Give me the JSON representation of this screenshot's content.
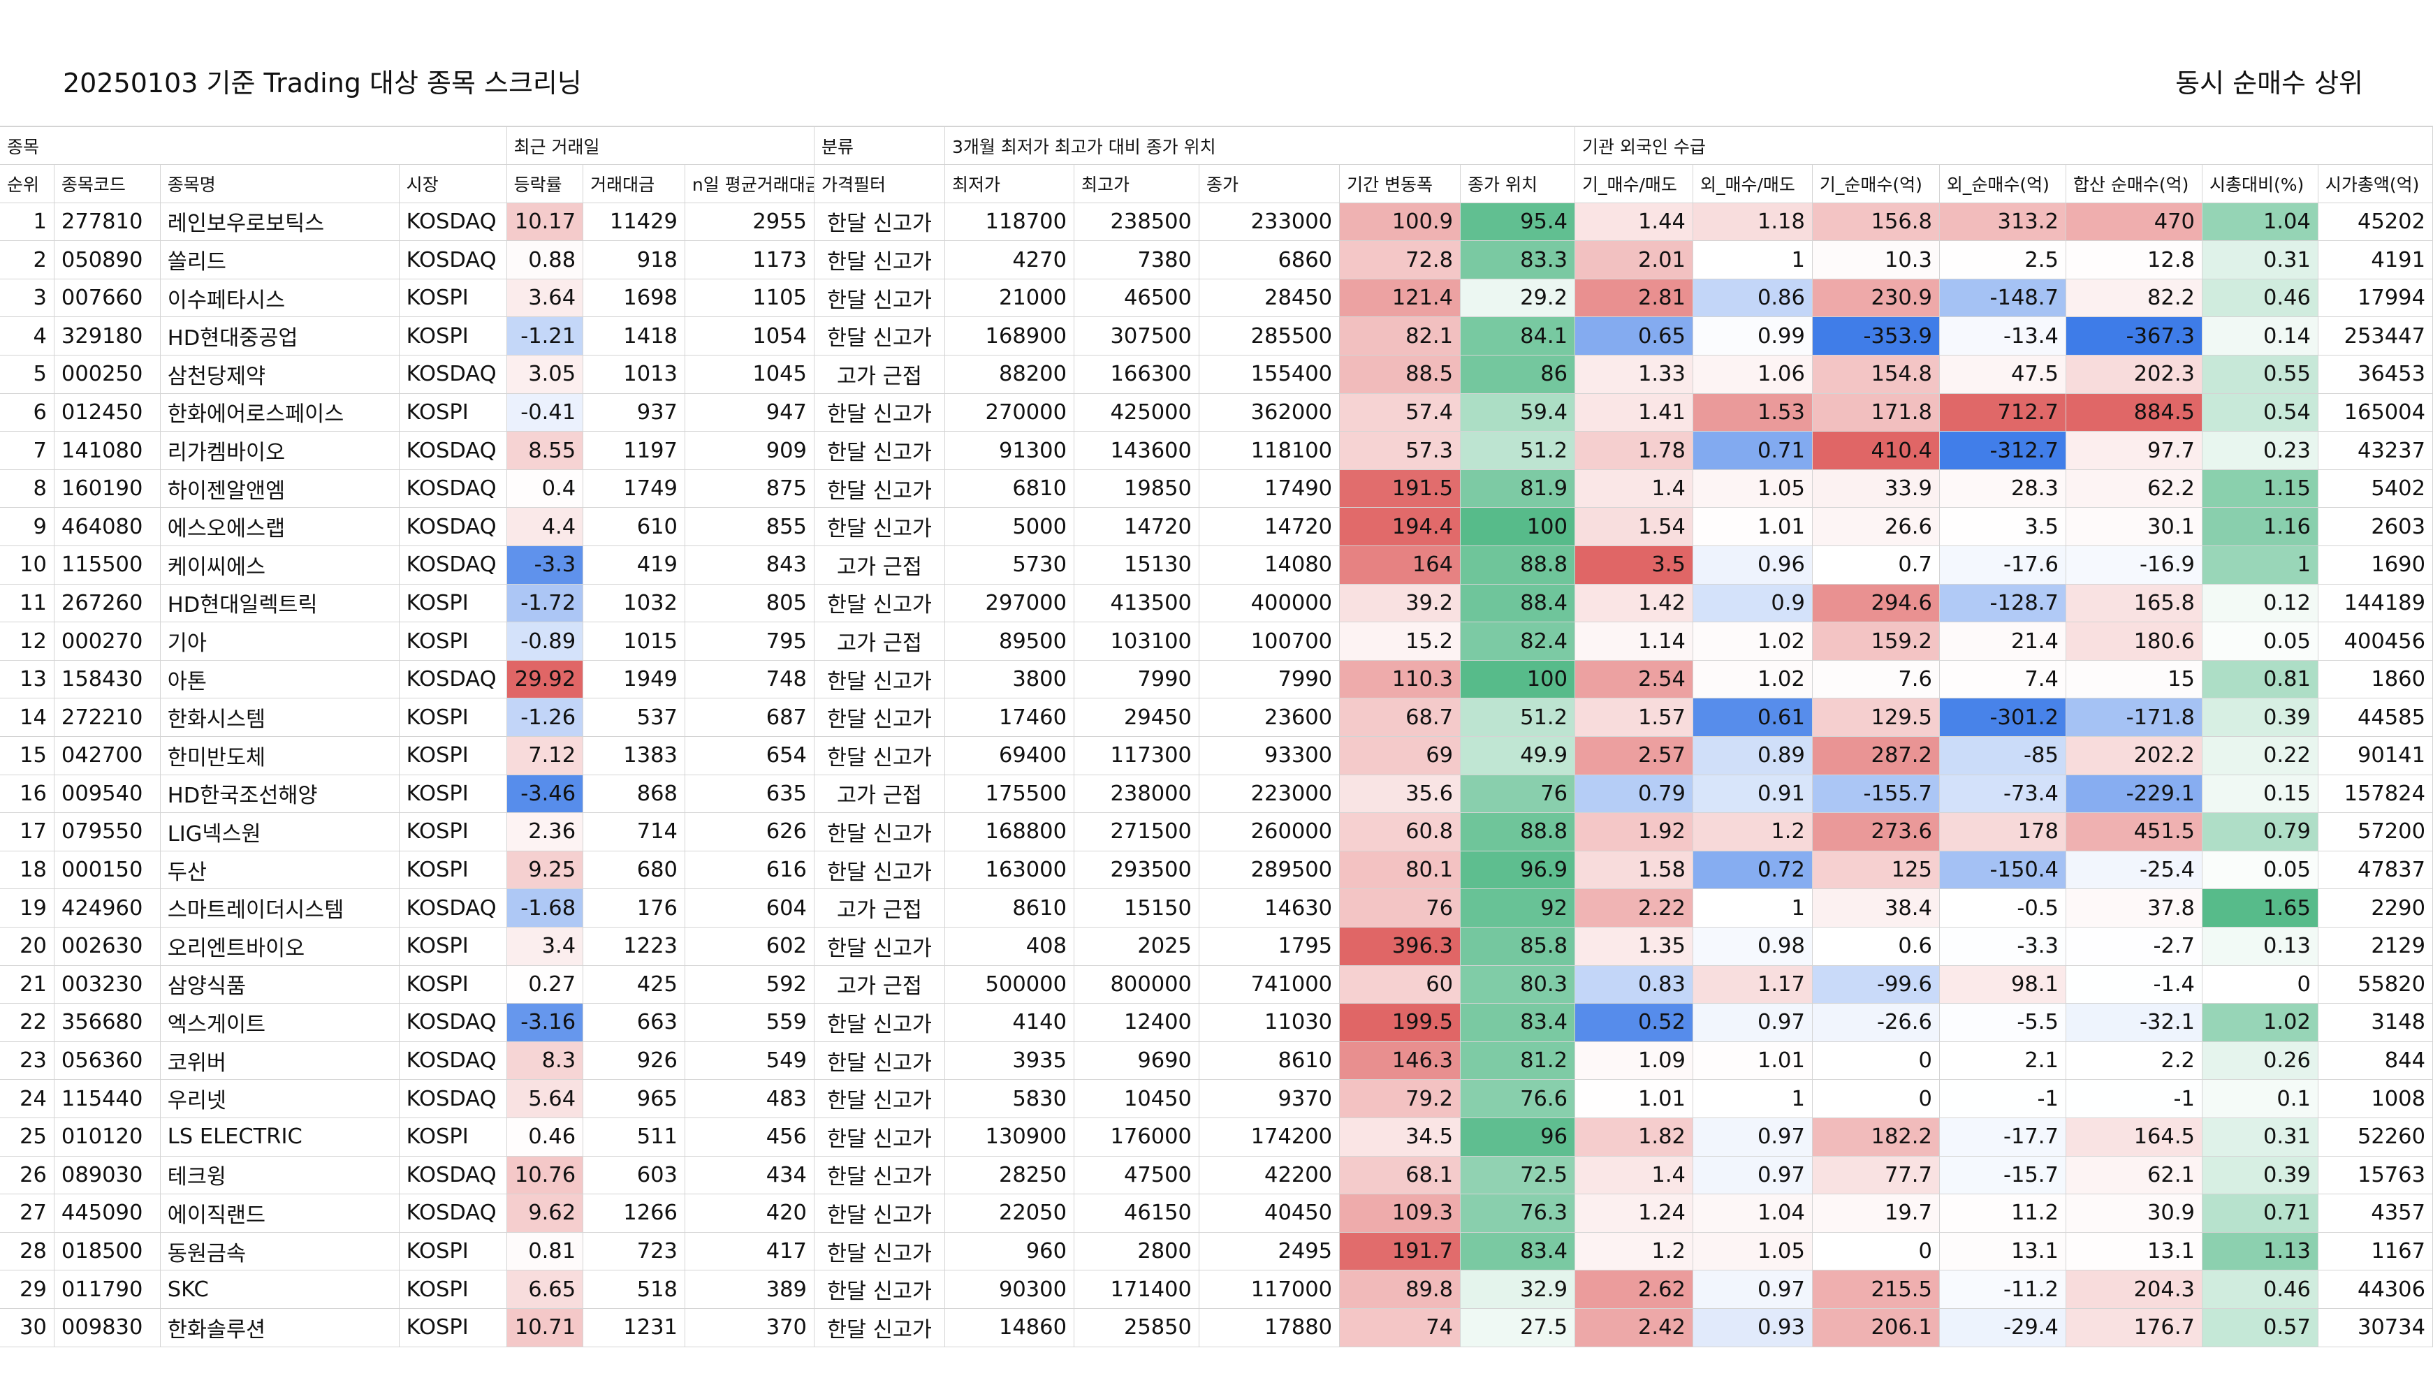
{
  "title": "20250103 기준 Trading 대상 종목 스크리닝",
  "subtitle": "동시 순매수 상위",
  "groups": [
    "종목",
    "최근 거래일",
    "분류",
    "3개월 최저가 최고가 대비 종가 위치",
    "기관 외국인 수급"
  ],
  "headers": [
    "순위",
    "종목코드",
    "종목명",
    "시장",
    "등락률",
    "거래대금",
    "n일 평균거래대금",
    "가격필터",
    "최저가",
    "최고가",
    "종가",
    "기간 변동폭",
    "종가 위치",
    "기_매수/매도",
    "외_매수/매도",
    "기_순매수(억)",
    "외_순매수(억)",
    "합산 순매수(억)",
    "시총대비(%)",
    "시가총액(억)"
  ],
  "rows": [
    [
      "1",
      "277810",
      "레인보우로보틱스",
      "KOSDAQ",
      "10.17",
      "11429",
      "2955",
      "한달 신고가",
      "118700",
      "238500",
      "233000",
      "100.9",
      "95.4",
      "1.44",
      "1.18",
      "156.8",
      "313.2",
      "470",
      "1.04",
      "45202"
    ],
    [
      "2",
      "050890",
      "쏠리드",
      "KOSDAQ",
      "0.88",
      "918",
      "1173",
      "한달 신고가",
      "4270",
      "7380",
      "6860",
      "72.8",
      "83.3",
      "2.01",
      "1",
      "10.3",
      "2.5",
      "12.8",
      "0.31",
      "4191"
    ],
    [
      "3",
      "007660",
      "이수페타시스",
      "KOSPI",
      "3.64",
      "1698",
      "1105",
      "한달 신고가",
      "21000",
      "46500",
      "28450",
      "121.4",
      "29.2",
      "2.81",
      "0.86",
      "230.9",
      "-148.7",
      "82.2",
      "0.46",
      "17994"
    ],
    [
      "4",
      "329180",
      "HD현대중공업",
      "KOSPI",
      "-1.21",
      "1418",
      "1054",
      "한달 신고가",
      "168900",
      "307500",
      "285500",
      "82.1",
      "84.1",
      "0.65",
      "0.99",
      "-353.9",
      "-13.4",
      "-367.3",
      "0.14",
      "253447"
    ],
    [
      "5",
      "000250",
      "삼천당제약",
      "KOSDAQ",
      "3.05",
      "1013",
      "1045",
      "고가 근접",
      "88200",
      "166300",
      "155400",
      "88.5",
      "86",
      "1.33",
      "1.06",
      "154.8",
      "47.5",
      "202.3",
      "0.55",
      "36453"
    ],
    [
      "6",
      "012450",
      "한화에어로스페이스",
      "KOSPI",
      "-0.41",
      "937",
      "947",
      "한달 신고가",
      "270000",
      "425000",
      "362000",
      "57.4",
      "59.4",
      "1.41",
      "1.53",
      "171.8",
      "712.7",
      "884.5",
      "0.54",
      "165004"
    ],
    [
      "7",
      "141080",
      "리가켐바이오",
      "KOSDAQ",
      "8.55",
      "1197",
      "909",
      "한달 신고가",
      "91300",
      "143600",
      "118100",
      "57.3",
      "51.2",
      "1.78",
      "0.71",
      "410.4",
      "-312.7",
      "97.7",
      "0.23",
      "43237"
    ],
    [
      "8",
      "160190",
      "하이젠알앤엠",
      "KOSDAQ",
      "0.4",
      "1749",
      "875",
      "한달 신고가",
      "6810",
      "19850",
      "17490",
      "191.5",
      "81.9",
      "1.4",
      "1.05",
      "33.9",
      "28.3",
      "62.2",
      "1.15",
      "5402"
    ],
    [
      "9",
      "464080",
      "에스오에스랩",
      "KOSDAQ",
      "4.4",
      "610",
      "855",
      "한달 신고가",
      "5000",
      "14720",
      "14720",
      "194.4",
      "100",
      "1.54",
      "1.01",
      "26.6",
      "3.5",
      "30.1",
      "1.16",
      "2603"
    ],
    [
      "10",
      "115500",
      "케이씨에스",
      "KOSDAQ",
      "-3.3",
      "419",
      "843",
      "고가 근접",
      "5730",
      "15130",
      "14080",
      "164",
      "88.8",
      "3.5",
      "0.96",
      "0.7",
      "-17.6",
      "-16.9",
      "1",
      "1690"
    ],
    [
      "11",
      "267260",
      "HD현대일렉트릭",
      "KOSPI",
      "-1.72",
      "1032",
      "805",
      "한달 신고가",
      "297000",
      "413500",
      "400000",
      "39.2",
      "88.4",
      "1.42",
      "0.9",
      "294.6",
      "-128.7",
      "165.8",
      "0.12",
      "144189"
    ],
    [
      "12",
      "000270",
      "기아",
      "KOSPI",
      "-0.89",
      "1015",
      "795",
      "고가 근접",
      "89500",
      "103100",
      "100700",
      "15.2",
      "82.4",
      "1.14",
      "1.02",
      "159.2",
      "21.4",
      "180.6",
      "0.05",
      "400456"
    ],
    [
      "13",
      "158430",
      "아톤",
      "KOSDAQ",
      "29.92",
      "1949",
      "748",
      "한달 신고가",
      "3800",
      "7990",
      "7990",
      "110.3",
      "100",
      "2.54",
      "1.02",
      "7.6",
      "7.4",
      "15",
      "0.81",
      "1860"
    ],
    [
      "14",
      "272210",
      "한화시스템",
      "KOSPI",
      "-1.26",
      "537",
      "687",
      "한달 신고가",
      "17460",
      "29450",
      "23600",
      "68.7",
      "51.2",
      "1.57",
      "0.61",
      "129.5",
      "-301.2",
      "-171.8",
      "0.39",
      "44585"
    ],
    [
      "15",
      "042700",
      "한미반도체",
      "KOSPI",
      "7.12",
      "1383",
      "654",
      "한달 신고가",
      "69400",
      "117300",
      "93300",
      "69",
      "49.9",
      "2.57",
      "0.89",
      "287.2",
      "-85",
      "202.2",
      "0.22",
      "90141"
    ],
    [
      "16",
      "009540",
      "HD한국조선해양",
      "KOSPI",
      "-3.46",
      "868",
      "635",
      "고가 근접",
      "175500",
      "238000",
      "223000",
      "35.6",
      "76",
      "0.79",
      "0.91",
      "-155.7",
      "-73.4",
      "-229.1",
      "0.15",
      "157824"
    ],
    [
      "17",
      "079550",
      "LIG넥스원",
      "KOSPI",
      "2.36",
      "714",
      "626",
      "한달 신고가",
      "168800",
      "271500",
      "260000",
      "60.8",
      "88.8",
      "1.92",
      "1.2",
      "273.6",
      "178",
      "451.5",
      "0.79",
      "57200"
    ],
    [
      "18",
      "000150",
      "두산",
      "KOSPI",
      "9.25",
      "680",
      "616",
      "한달 신고가",
      "163000",
      "293500",
      "289500",
      "80.1",
      "96.9",
      "1.58",
      "0.72",
      "125",
      "-150.4",
      "-25.4",
      "0.05",
      "47837"
    ],
    [
      "19",
      "424960",
      "스마트레이더시스템",
      "KOSDAQ",
      "-1.68",
      "176",
      "604",
      "고가 근접",
      "8610",
      "15150",
      "14630",
      "76",
      "92",
      "2.22",
      "1",
      "38.4",
      "-0.5",
      "37.8",
      "1.65",
      "2290"
    ],
    [
      "20",
      "002630",
      "오리엔트바이오",
      "KOSPI",
      "3.4",
      "1223",
      "602",
      "한달 신고가",
      "408",
      "2025",
      "1795",
      "396.3",
      "85.8",
      "1.35",
      "0.98",
      "0.6",
      "-3.3",
      "-2.7",
      "0.13",
      "2129"
    ],
    [
      "21",
      "003230",
      "삼양식품",
      "KOSPI",
      "0.27",
      "425",
      "592",
      "고가 근접",
      "500000",
      "800000",
      "741000",
      "60",
      "80.3",
      "0.83",
      "1.17",
      "-99.6",
      "98.1",
      "-1.4",
      "0",
      "55820"
    ],
    [
      "22",
      "356680",
      "엑스게이트",
      "KOSDAQ",
      "-3.16",
      "663",
      "559",
      "한달 신고가",
      "4140",
      "12400",
      "11030",
      "199.5",
      "83.4",
      "0.52",
      "0.97",
      "-26.6",
      "-5.5",
      "-32.1",
      "1.02",
      "3148"
    ],
    [
      "23",
      "056360",
      "코위버",
      "KOSDAQ",
      "8.3",
      "926",
      "549",
      "한달 신고가",
      "3935",
      "9690",
      "8610",
      "146.3",
      "81.2",
      "1.09",
      "1.01",
      "0",
      "2.1",
      "2.2",
      "0.26",
      "844"
    ],
    [
      "24",
      "115440",
      "우리넷",
      "KOSDAQ",
      "5.64",
      "965",
      "483",
      "한달 신고가",
      "5830",
      "10450",
      "9370",
      "79.2",
      "76.6",
      "1.01",
      "1",
      "0",
      "-1",
      "-1",
      "0.1",
      "1008"
    ],
    [
      "25",
      "010120",
      "LS ELECTRIC",
      "KOSPI",
      "0.46",
      "511",
      "456",
      "한달 신고가",
      "130900",
      "176000",
      "174200",
      "34.5",
      "96",
      "1.82",
      "0.97",
      "182.2",
      "-17.7",
      "164.5",
      "0.31",
      "52260"
    ],
    [
      "26",
      "089030",
      "테크윙",
      "KOSDAQ",
      "10.76",
      "603",
      "434",
      "한달 신고가",
      "28250",
      "47500",
      "42200",
      "68.1",
      "72.5",
      "1.4",
      "0.97",
      "77.7",
      "-15.7",
      "62.1",
      "0.39",
      "15763"
    ],
    [
      "27",
      "445090",
      "에이직랜드",
      "KOSDAQ",
      "9.62",
      "1266",
      "420",
      "한달 신고가",
      "22050",
      "46150",
      "40450",
      "109.3",
      "76.3",
      "1.24",
      "1.04",
      "19.7",
      "11.2",
      "30.9",
      "0.71",
      "4357"
    ],
    [
      "28",
      "018500",
      "동원금속",
      "KOSPI",
      "0.81",
      "723",
      "417",
      "한달 신고가",
      "960",
      "2800",
      "2495",
      "191.7",
      "83.4",
      "1.2",
      "1.05",
      "0",
      "13.1",
      "13.1",
      "1.13",
      "1167"
    ],
    [
      "29",
      "011790",
      "SKC",
      "KOSPI",
      "6.65",
      "518",
      "389",
      "한달 신고가",
      "90300",
      "171400",
      "117000",
      "89.8",
      "32.9",
      "2.62",
      "0.97",
      "215.5",
      "-11.2",
      "204.3",
      "0.46",
      "44306"
    ],
    [
      "30",
      "009830",
      "한화솔루션",
      "KOSPI",
      "10.71",
      "1231",
      "370",
      "한달 신고가",
      "14860",
      "25850",
      "17880",
      "74",
      "27.5",
      "2.42",
      "0.93",
      "206.1",
      "-29.4",
      "176.7",
      "0.57",
      "30734"
    ]
  ],
  "colors": {
    "red": "#e06666",
    "blue": "#3d7be8",
    "green": "#57bb8a",
    "white": "#ffffff",
    "grid": "#d4d4d4"
  }
}
